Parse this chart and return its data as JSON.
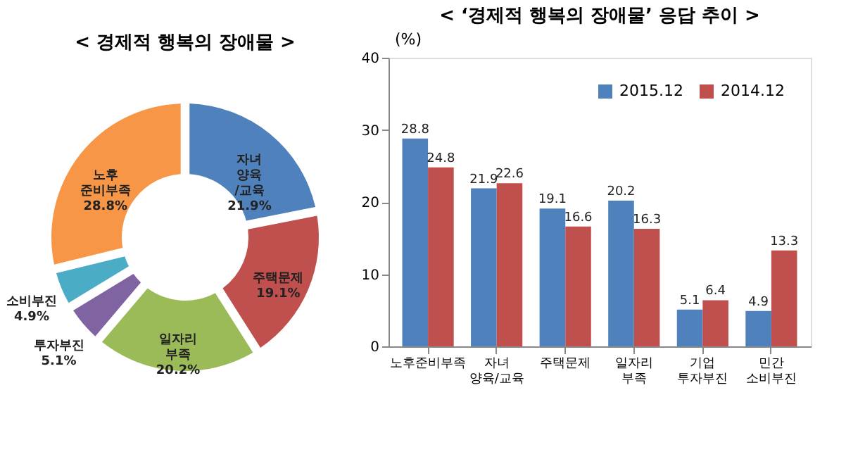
{
  "chart_data": [
    {
      "type": "donut",
      "title": "< 경제적 행복의 장애물 >",
      "categories": [
        "자녀\n양육\n/교육",
        "주택문제",
        "일자리\n부족",
        "투자부진",
        "소비부진",
        "노후\n준비부족"
      ],
      "values": [
        21.9,
        19.1,
        20.2,
        5.1,
        4.9,
        28.8
      ],
      "value_labels": [
        "21.9%",
        "19.1%",
        "20.2%",
        "5.1%",
        "4.9%",
        "28.8%"
      ],
      "colors": [
        "#4f81bd",
        "#c0504d",
        "#9bbb59",
        "#8064a2",
        "#4bacc6",
        "#f79646"
      ]
    },
    {
      "type": "bar",
      "title": "< ‘경제적 행복의 장애물’ 응답 추이 >",
      "ylabel": "(%)",
      "categories": [
        "노후준비부족",
        "자녀\n양육/교육",
        "주택문제",
        "일자리 부족",
        "기업 투자부진",
        "민간 소비부진"
      ],
      "series": [
        {
          "name": "2015.12",
          "color": "#4f81bd",
          "values": [
            28.8,
            21.9,
            19.1,
            20.2,
            5.1,
            4.9
          ]
        },
        {
          "name": "2014.12",
          "color": "#c0504d",
          "values": [
            24.8,
            22.6,
            16.6,
            16.3,
            6.4,
            13.3
          ]
        }
      ],
      "ylim": [
        0,
        40
      ],
      "yticks": [
        0,
        10,
        20,
        30,
        40
      ],
      "data_labels": true,
      "legend": "top right",
      "grid": false
    }
  ]
}
